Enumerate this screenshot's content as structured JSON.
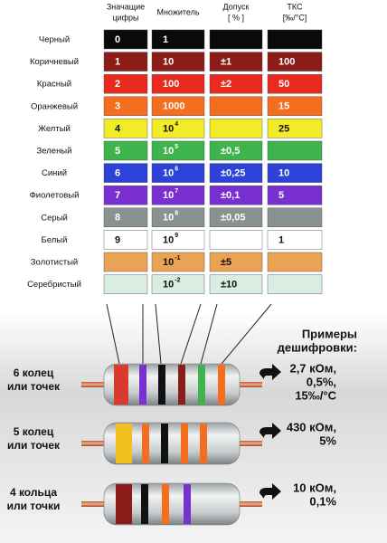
{
  "header": {
    "columns": [
      [
        "Значащие",
        "цифры"
      ],
      [
        "Множитель"
      ],
      [
        "Допуск",
        "[ % ]"
      ],
      [
        "ТКС",
        "[‰/°C]"
      ]
    ]
  },
  "table": {
    "rows": [
      {
        "name": "Черный",
        "color": "#0a0a0a",
        "text_color": "#ffffff",
        "digit": "0",
        "multiplier": "1"
      },
      {
        "name": "Коричневый",
        "color": "#8c1c18",
        "text_color": "#ffffff",
        "digit": "1",
        "multiplier": "10",
        "tolerance": "±1",
        "tcr": "100"
      },
      {
        "name": "Красный",
        "color": "#ea2a1e",
        "text_color": "#ffffff",
        "digit": "2",
        "multiplier": "100",
        "tolerance": "±2",
        "tcr": "50"
      },
      {
        "name": "Оранжевый",
        "color": "#f46e1e",
        "text_color": "#ffffff",
        "digit": "3",
        "multiplier": "1000",
        "tcr": "15"
      },
      {
        "name": "Желтый",
        "color": "#f2ec28",
        "text_color": "#111111",
        "digit": "4",
        "multiplier": "10",
        "multiplier_exp": "4",
        "tcr": "25"
      },
      {
        "name": "Зеленый",
        "color": "#3db44c",
        "text_color": "#ffffff",
        "digit": "5",
        "multiplier": "10",
        "multiplier_exp": "5",
        "tolerance": "±0,5"
      },
      {
        "name": "Синий",
        "color": "#2c42d8",
        "text_color": "#ffffff",
        "digit": "6",
        "multiplier": "10",
        "multiplier_exp": "6",
        "tolerance": "±0,25",
        "tcr": "10"
      },
      {
        "name": "Фиолетовый",
        "color": "#7a30d0",
        "text_color": "#ffffff",
        "digit": "7",
        "multiplier": "10",
        "multiplier_exp": "7",
        "tolerance": "±0,1",
        "tcr": "5"
      },
      {
        "name": "Серый",
        "color": "#8a9191",
        "text_color": "#ffffff",
        "digit": "8",
        "multiplier": "10",
        "multiplier_exp": "8",
        "tolerance": "±0,05"
      },
      {
        "name": "Белый",
        "color": "#ffffff",
        "text_color": "#111111",
        "digit": "9",
        "multiplier": "10",
        "multiplier_exp": "9",
        "tcr": "1"
      },
      {
        "name": "Золотистый",
        "color": "#eaa254",
        "text_color": "#111111",
        "multiplier": "10",
        "multiplier_exp": "-1",
        "tolerance": "±5"
      },
      {
        "name": "Серебристый",
        "color": "#d9ede2",
        "text_color": "#111111",
        "multiplier": "10",
        "multiplier_exp": "-2",
        "tolerance": "±10"
      }
    ]
  },
  "examples": {
    "title": [
      "Примеры",
      "дешифровки:"
    ],
    "items": [
      {
        "label": [
          "6 колец",
          "или точек"
        ],
        "value": [
          "2,7 кОм,",
          "0,5%,",
          "15‰/°C"
        ]
      },
      {
        "label": [
          "5 колец",
          "или точек"
        ],
        "value": [
          "430 кОм,",
          "5%"
        ]
      },
      {
        "label": [
          "4 кольца",
          "или точки"
        ],
        "value": [
          "10 кОм,",
          "0,1%"
        ]
      }
    ]
  }
}
